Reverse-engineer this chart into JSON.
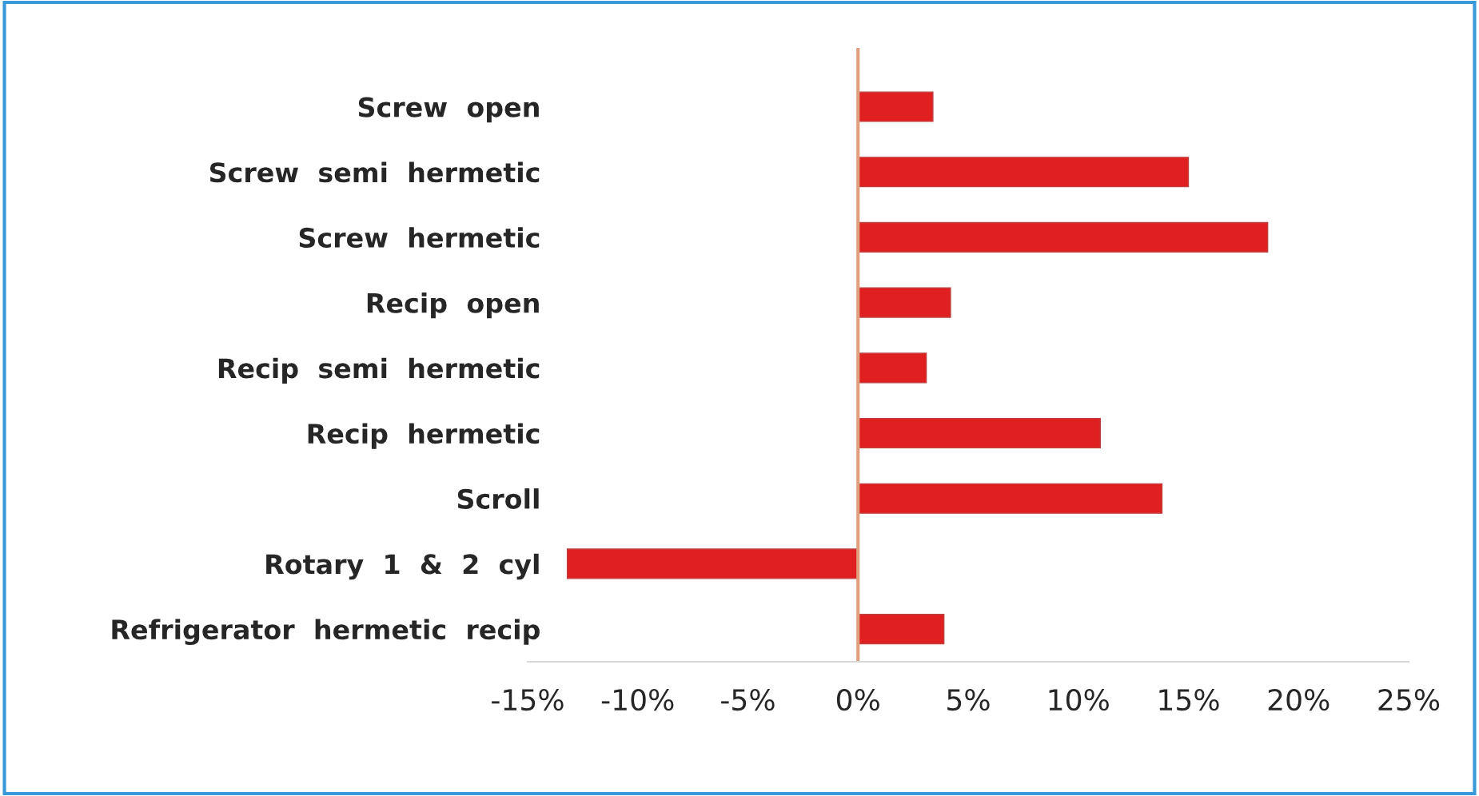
{
  "chart_data": {
    "type": "bar",
    "orientation": "horizontal",
    "categories": [
      "Screw  open",
      "Screw  semi  hermetic",
      "Screw  hermetic",
      "Recip  open",
      "Recip  semi  hermetic",
      "Recip  hermetic",
      "Scroll",
      "Rotary  1  &  2  cyl",
      "Refrigerator  hermetic  recip"
    ],
    "values": [
      3.4,
      15.0,
      18.6,
      4.2,
      3.1,
      11.0,
      13.8,
      -13.2,
      3.9
    ],
    "color": "#e02020",
    "xlim": [
      -15,
      25
    ],
    "xticks": [
      {
        "value": -15,
        "label": "-15%"
      },
      {
        "value": -10,
        "label": "-10%"
      },
      {
        "value": -5,
        "label": "-5%"
      },
      {
        "value": 0,
        "label": "0%"
      },
      {
        "value": 5,
        "label": "5%"
      },
      {
        "value": 10,
        "label": "10%"
      },
      {
        "value": 15,
        "label": "15%"
      },
      {
        "value": 20,
        "label": "20%"
      },
      {
        "value": 25,
        "label": "25%"
      }
    ],
    "ref_lines": [
      {
        "axis": "x",
        "value": 0,
        "color": "#e0a080"
      }
    ],
    "grid": false,
    "legend": false
  }
}
